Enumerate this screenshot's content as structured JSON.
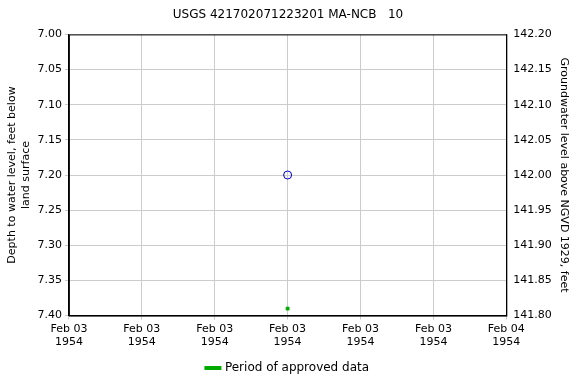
{
  "chart_data": {
    "type": "scatter",
    "title": "USGS 421702071223201 MA-NCB   10",
    "y_label": "Depth to water level, feet below land surface",
    "y2_label": "Groundwater level above NGVD 1929, feet",
    "xlim": [
      0,
      24
    ],
    "xticks": [
      {
        "value": 0,
        "label": "Feb 03 1954"
      },
      {
        "value": 4,
        "label": "Feb 03 1954"
      },
      {
        "value": 8,
        "label": "Feb 03 1954"
      },
      {
        "value": 12,
        "label": "Feb 03 1954"
      },
      {
        "value": 16,
        "label": "Feb 03 1954"
      },
      {
        "value": 20,
        "label": "Feb 03 1954"
      },
      {
        "value": 24,
        "label": "Feb 04 1954"
      }
    ],
    "ylim": [
      7.4,
      7.0
    ],
    "yticks": [
      {
        "value": 7.0,
        "label": "7.00"
      },
      {
        "value": 7.05,
        "label": "7.05"
      },
      {
        "value": 7.1,
        "label": "7.10"
      },
      {
        "value": 7.15,
        "label": "7.15"
      },
      {
        "value": 7.2,
        "label": "7.20"
      },
      {
        "value": 7.25,
        "label": "7.25"
      },
      {
        "value": 7.3,
        "label": "7.30"
      },
      {
        "value": 7.35,
        "label": "7.35"
      },
      {
        "value": 7.4,
        "label": "7.40"
      }
    ],
    "y2lim": [
      141.8,
      142.2
    ],
    "y2ticks": [
      {
        "value": 141.8,
        "label": "141.80"
      },
      {
        "value": 141.85,
        "label": "141.85"
      },
      {
        "value": 141.9,
        "label": "141.90"
      },
      {
        "value": 141.95,
        "label": "141.95"
      },
      {
        "value": 142.0,
        "label": "142.00"
      },
      {
        "value": 142.05,
        "label": "142.05"
      },
      {
        "value": 142.1,
        "label": "142.10"
      },
      {
        "value": 142.15,
        "label": "142.15"
      },
      {
        "value": 142.2,
        "label": "142.20"
      }
    ],
    "grid": true,
    "legend": "bottom",
    "series": [
      {
        "color": "#0000cc",
        "marker": "open_circle",
        "x": [
          12
        ],
        "values": [
          7.2
        ]
      },
      {
        "name": "Period of approved data",
        "color": "#00aa00",
        "marker": "square",
        "x": [
          12
        ],
        "values": [
          7.39
        ]
      }
    ]
  }
}
